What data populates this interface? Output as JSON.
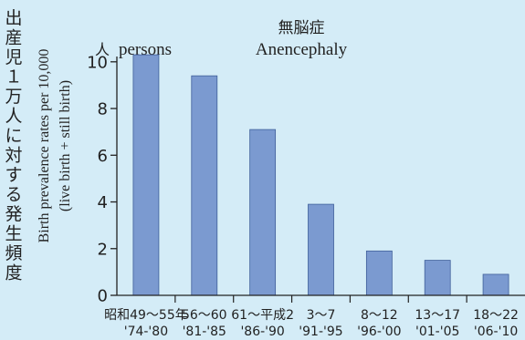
{
  "chart_data": {
    "type": "bar",
    "title_jp": "無脳症",
    "title_en": "Anencephaly",
    "unit_jp": "人",
    "unit_en": "persons",
    "ylabel_jp": [
      "出",
      "産",
      "児",
      "１",
      "万",
      "人",
      "に",
      "対",
      "す",
      "る",
      "発",
      "生",
      "頻",
      "度"
    ],
    "ylabel_en_line1": "Birth prevalence rates per 10,000",
    "ylabel_en_line2": "(live birth + still birth)",
    "ylim": [
      0,
      10.5
    ],
    "yticks": [
      0,
      2,
      4,
      6,
      8,
      10
    ],
    "categories": [
      {
        "jp": "昭和49〜55年",
        "en": "'74-'80"
      },
      {
        "jp": "56〜60",
        "en": "'81-'85"
      },
      {
        "jp": "61〜平成2",
        "en": "'86-'90"
      },
      {
        "jp": "3〜7",
        "en": "'91-'95"
      },
      {
        "jp": "8〜12",
        "en": "'96-'00"
      },
      {
        "jp": "13〜17",
        "en": "'01-'05"
      },
      {
        "jp": "18〜22",
        "en": "'06-'10"
      }
    ],
    "values": [
      10.3,
      9.4,
      7.1,
      3.9,
      1.9,
      1.5,
      0.9
    ],
    "bar_color": "#7b9ad0",
    "background_color": "#d4ecf7"
  }
}
